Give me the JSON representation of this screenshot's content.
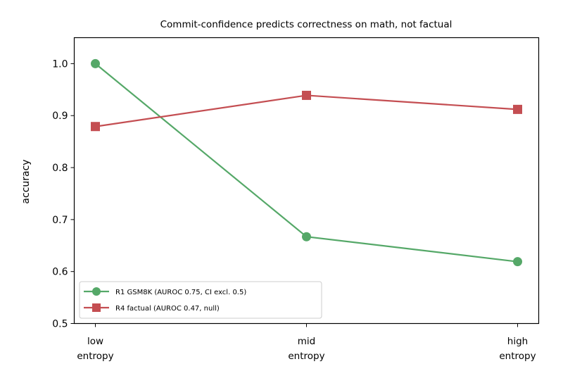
{
  "chart_data": {
    "type": "line",
    "title": "Commit-confidence predicts correctness on math, not factual",
    "xlabel": "",
    "ylabel": "accuracy",
    "categories": [
      [
        "low",
        "entropy"
      ],
      [
        "mid",
        "entropy"
      ],
      [
        "high",
        "entropy"
      ]
    ],
    "ylim": [
      0.5,
      1.05
    ],
    "yticks": [
      "0.5",
      "0.6",
      "0.7",
      "0.8",
      "0.9",
      "1.0"
    ],
    "grid": false,
    "legend_position": "lower-left",
    "series": [
      {
        "name": "R1 GSM8K (AUROC 0.75, CI excl. 0.5)",
        "values": [
          1.0,
          0.667,
          0.619
        ],
        "color": "#55a868",
        "marker": "circle"
      },
      {
        "name": "R4 factual (AUROC 0.47, null)",
        "values": [
          0.879,
          0.939,
          0.912
        ],
        "color": "#c44e52",
        "marker": "square"
      }
    ]
  }
}
